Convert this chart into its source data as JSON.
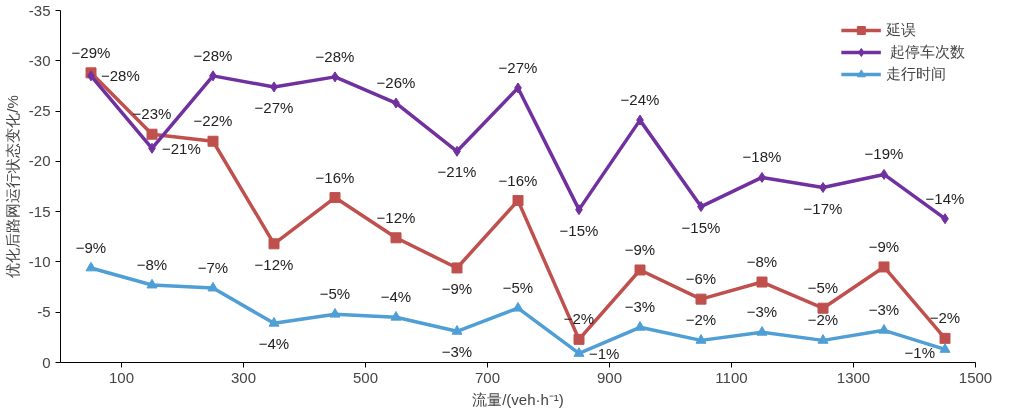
{
  "chart_data": {
    "type": "line",
    "xlabel": "流量/(veh·h⁻¹)",
    "ylabel": "优化后路网运行状态变化/%",
    "x": [
      50,
      150,
      250,
      350,
      450,
      550,
      650,
      750,
      850,
      950,
      1050,
      1150,
      1250,
      1350,
      1450
    ],
    "xlim": [
      0,
      1500
    ],
    "xticks": [
      100,
      300,
      500,
      700,
      900,
      1100,
      1300,
      1500
    ],
    "ylim": [
      0,
      -35
    ],
    "yticks": [
      0,
      -5,
      -10,
      -15,
      -20,
      -25,
      -30,
      -35
    ],
    "grid": false,
    "legend": "top right",
    "series": [
      {
        "name": "延误",
        "color": "#c0504d",
        "marker": "square",
        "values": [
          -28.8,
          -22.7,
          -22,
          -11.8,
          -16.4,
          -12.4,
          -9.4,
          -16.1,
          -2.3,
          -9.2,
          -6.3,
          -8,
          -5.4,
          -9.5,
          -2.4
        ],
        "value_labels": [
          "−29%",
          "−23%",
          "−22%",
          "−12%",
          "−16%",
          "−12%",
          "−9%",
          "−16%",
          "−2%",
          "−9%",
          "−6%",
          "−8%",
          "−5%",
          "−9%",
          "−2%"
        ]
      },
      {
        "name": " 起停车次数",
        "color": "#7030a0",
        "marker": "diamond",
        "values": [
          -28.5,
          -21.3,
          -28.5,
          -27.4,
          -28.4,
          -25.8,
          -21,
          -27.3,
          -15.2,
          -24.1,
          -15.5,
          -18.4,
          -17.4,
          -18.7,
          -14.3
        ],
        "value_labels": [
          "−28%",
          "−21%",
          "−28%",
          "−27%",
          "−28%",
          "−26%",
          "−21%",
          "−27%",
          "−15%",
          "−24%",
          "−15%",
          "−18%",
          "−17%",
          "−19%",
          "−14%"
        ]
      },
      {
        "name": "走行时间",
        "color": "#4f9fd6",
        "marker": "triangle",
        "values": [
          -9.4,
          -7.7,
          -7.4,
          -3.9,
          -4.8,
          -4.5,
          -3.1,
          -5.4,
          -0.9,
          -3.5,
          -2.2,
          -3.0,
          -2.2,
          -3.2,
          -1.3
        ],
        "value_labels": [
          "−9%",
          "−8%",
          "−7%",
          "−4%",
          "−5%",
          "−4%",
          "−3%",
          "−5%",
          "−1%",
          "−3%",
          "−2%",
          "−3%",
          "−2%",
          "−3%",
          "−1%"
        ]
      }
    ]
  }
}
